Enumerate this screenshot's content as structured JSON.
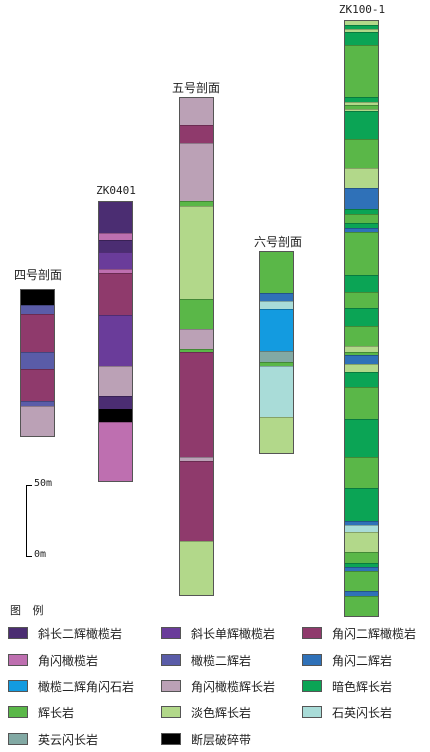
{
  "legend_title": "图 例",
  "scale": {
    "top_label": "50m",
    "bottom_label": "0m"
  },
  "lithology": {
    "xcgp": {
      "name": "斜长二辉橄榄岩",
      "color": "#4b2d72"
    },
    "xcdh": {
      "name": "斜长单辉橄榄岩",
      "color": "#6a3c9a"
    },
    "jsegl": {
      "name": "角闪二辉橄榄岩",
      "color": "#8f3a6c"
    },
    "jsgl": {
      "name": "角闪橄榄岩",
      "color": "#be6fb0"
    },
    "gleh": {
      "name": "橄榄二辉岩",
      "color": "#5a5ca8"
    },
    "jseh": {
      "name": "角闪二辉岩",
      "color": "#2f71b8"
    },
    "glehjs": {
      "name": "橄榄二辉角闪石岩",
      "color": "#139be0"
    },
    "jsglhc": {
      "name": "角闪橄榄辉长岩",
      "color": "#bba1b6"
    },
    "asfhc": {
      "name": "暗色辉长岩",
      "color": "#0ba455"
    },
    "fhc": {
      "name": "辉长岩",
      "color": "#5ab748"
    },
    "dsfhc": {
      "name": "淡色辉长岩",
      "color": "#b2d88a"
    },
    "syhc": {
      "name": "石英闪长岩",
      "color": "#a9dcd8"
    },
    "yyhc": {
      "name": "英云闪长岩",
      "color": "#82a9a4"
    },
    "dcpsd": {
      "name": "断层破碎带",
      "color": "#000000"
    }
  },
  "legend_order": [
    "xcgp",
    "xcdh",
    "jsegl",
    "jsgl",
    "gleh",
    "jseh",
    "glehjs",
    "jsglhc",
    "asfhc",
    "fhc",
    "dsfhc",
    "syhc",
    "yyhc",
    "dcpsd"
  ],
  "columns": [
    {
      "name": "四号剖面",
      "layers": [
        [
          "dcpsd",
          16
        ],
        [
          "gleh",
          9
        ],
        [
          "jsegl",
          38
        ],
        [
          "gleh",
          17
        ],
        [
          "jsegl",
          32
        ],
        [
          "gleh",
          5
        ],
        [
          "jsglhc",
          31
        ]
      ]
    },
    {
      "name": "ZK0401",
      "layers": [
        [
          "xcgp",
          32
        ],
        [
          "jsgl",
          7
        ],
        [
          "xcgp",
          12
        ],
        [
          "xcdh",
          17
        ],
        [
          "jsgl",
          3
        ],
        [
          "jsegl",
          42
        ],
        [
          "xcdh",
          51
        ],
        [
          "jsglhc",
          30
        ],
        [
          "xcgp",
          13
        ],
        [
          "dcpsd",
          12
        ],
        [
          "jsgl",
          60
        ]
      ]
    },
    {
      "name": "五号剖面",
      "layers": [
        [
          "jsglhc",
          28
        ],
        [
          "jsegl",
          18
        ],
        [
          "jsglhc",
          58
        ],
        [
          "fhc",
          5
        ],
        [
          "dsfhc",
          93
        ],
        [
          "fhc",
          30
        ],
        [
          "jsglhc",
          20
        ],
        [
          "fhc",
          3
        ],
        [
          "jsegl",
          105
        ],
        [
          "jsglhc",
          4
        ],
        [
          "jsegl",
          80
        ],
        [
          "dsfhc",
          55
        ]
      ]
    },
    {
      "name": "六号剖面",
      "layers": [
        [
          "fhc",
          42
        ],
        [
          "jseh",
          8
        ],
        [
          "syhc",
          7
        ],
        [
          "glehjs",
          42
        ],
        [
          "yyhc",
          11
        ],
        [
          "fhc",
          4
        ],
        [
          "syhc",
          50
        ],
        [
          "dsfhc",
          37
        ]
      ]
    },
    {
      "name": "ZK100-1",
      "layers": [
        [
          "dsfhc",
          5
        ],
        [
          "asfhc",
          4
        ],
        [
          "dsfhc",
          3
        ],
        [
          "asfhc",
          12
        ],
        [
          "fhc",
          51
        ],
        [
          "asfhc",
          5
        ],
        [
          "dsfhc",
          3
        ],
        [
          "fhc",
          4
        ],
        [
          "dsfhc",
          2
        ],
        [
          "asfhc",
          27
        ],
        [
          "fhc",
          28
        ],
        [
          "dsfhc",
          20
        ],
        [
          "jseh",
          20
        ],
        [
          "asfhc",
          5
        ],
        [
          "fhc",
          9
        ],
        [
          "asfhc",
          5
        ],
        [
          "jseh",
          4
        ],
        [
          "fhc",
          42
        ],
        [
          "asfhc",
          16
        ],
        [
          "fhc",
          16
        ],
        [
          "asfhc",
          17
        ],
        [
          "fhc",
          20
        ],
        [
          "dsfhc",
          6
        ],
        [
          "fhc",
          3
        ],
        [
          "jseh",
          8
        ],
        [
          "dsfhc",
          8
        ],
        [
          "asfhc",
          15
        ],
        [
          "fhc",
          31
        ],
        [
          "asfhc",
          37
        ],
        [
          "fhc",
          30
        ],
        [
          "asfhc",
          32
        ],
        [
          "jseh",
          4
        ],
        [
          "syhc",
          7
        ],
        [
          "dsfhc",
          20
        ],
        [
          "fhc",
          10
        ],
        [
          "asfhc",
          4
        ],
        [
          "jseh",
          4
        ],
        [
          "fhc",
          20
        ],
        [
          "jseh",
          5
        ],
        [
          "fhc",
          20
        ]
      ]
    }
  ]
}
